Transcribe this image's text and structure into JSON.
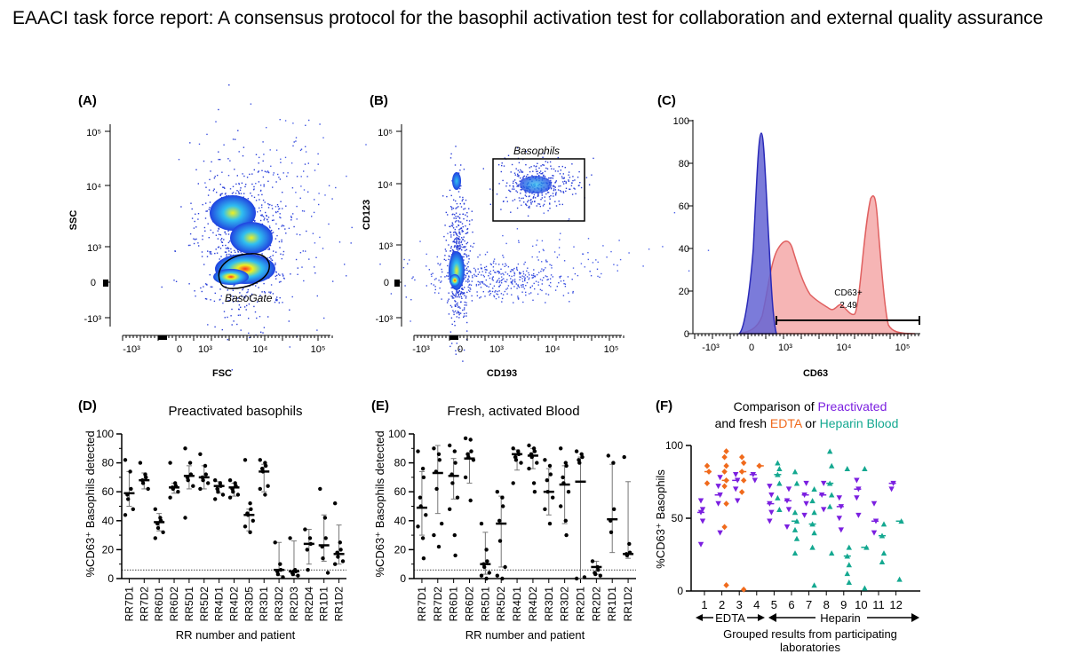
{
  "title": "EAACI task force report: A consensus protocol for the basophil activation test for collaboration and external quality assurance",
  "colors": {
    "dot": "#000000",
    "purple": "#7b1fe0",
    "orange": "#f06a1c",
    "teal": "#14a890",
    "histo_blue_fill": "#6464d4",
    "histo_blue_line": "#2a2ab8",
    "histo_red_fill": "#f4a8a8",
    "histo_red_line": "#e06060",
    "density_blue": "#2040e0",
    "density_cyan": "#30c0f0",
    "density_yellow": "#f0f020",
    "density_red": "#ff3020"
  },
  "panels": {
    "A": {
      "label": "(A)",
      "xlabel": "FSC",
      "ylabel": "SSC",
      "gate_label": "BasoGate",
      "x_ticks": [
        "-10³",
        "0",
        "10³",
        "10⁴",
        "10⁵"
      ],
      "y_ticks": [
        "10⁵",
        "10⁴",
        "10³",
        "0",
        "-10³"
      ]
    },
    "B": {
      "label": "(B)",
      "xlabel": "CD193",
      "ylabel": "CD123",
      "gate_label": "Basophils",
      "x_ticks": [
        "-10³",
        "0",
        "10³",
        "10⁴",
        "10⁵"
      ],
      "y_ticks": [
        "10⁵",
        "10⁴",
        "10³",
        "0",
        "-10³"
      ]
    },
    "C": {
      "label": "(C)",
      "xlabel": "CD63",
      "x_ticks": [
        "-10³",
        "0",
        "10³",
        "10⁴",
        "10⁵"
      ],
      "y_ticks": [
        "100",
        "80",
        "60",
        "40",
        "20",
        "0"
      ],
      "gate_label": "CD63+",
      "gate_value": "2.49"
    },
    "D": {
      "label": "(D)",
      "title": "Preactivated basophils",
      "ylabel": "%CD63⁺ Basophils detected",
      "xlabel": "RR number and patient"
    },
    "E": {
      "label": "(E)",
      "title": "Fresh, activated Blood",
      "ylabel": "%CD63⁺ Basophils detected",
      "xlabel": "RR number and patient"
    },
    "F": {
      "label": "(F)",
      "title_line1": "Comparison of ",
      "title_word_preactivated": "Preactivated",
      "title_line2a": "and fresh ",
      "title_word_edta": "EDTA",
      "title_or": " or ",
      "title_word_heparin": "Heparin Blood",
      "ylabel": "%CD63⁺ Basophils",
      "edta_label": "EDTA",
      "heparin_label": "Heparin",
      "xlabel_line1": "Grouped results from participating",
      "xlabel_line2": "laboratories"
    }
  },
  "chart_data": [
    {
      "panel": "D",
      "type": "scatter",
      "title": "Preactivated basophils",
      "ylabel": "%CD63+ Basophils detected",
      "xlabel": "RR number and patient",
      "ylim": [
        0,
        100
      ],
      "y_ticks": [
        0,
        20,
        40,
        60,
        80,
        100
      ],
      "reference_line": 6,
      "categories": [
        "RR7D1",
        "RR7D2",
        "RR6D1",
        "RR6D2",
        "RR5D1",
        "RR5D2",
        "RR4D1",
        "RR4D2",
        "RR3D5",
        "RR3D1",
        "RR3D2",
        "RR2D3",
        "RR2D4",
        "RR1D1",
        "RR1D2"
      ],
      "points": [
        [
          82,
          74,
          62,
          58,
          55,
          48,
          44
        ],
        [
          80,
          72,
          70,
          68,
          66,
          62
        ],
        [
          48,
          42,
          40,
          38,
          35,
          32,
          28
        ],
        [
          80,
          66,
          64,
          63,
          62,
          60,
          56
        ],
        [
          90,
          80,
          72,
          70,
          68,
          64,
          42
        ],
        [
          86,
          78,
          72,
          70,
          68,
          66,
          62
        ],
        [
          68,
          66,
          64,
          62,
          60,
          58,
          55
        ],
        [
          68,
          66,
          64,
          62,
          60,
          58,
          56
        ],
        [
          82,
          52,
          48,
          45,
          44,
          40,
          36,
          32
        ],
        [
          82,
          80,
          78,
          76,
          74,
          64,
          62,
          58
        ],
        [
          25,
          10,
          6,
          5,
          3,
          1
        ],
        [
          28,
          6,
          5,
          4,
          3,
          2
        ],
        [
          34,
          28,
          24,
          20,
          6
        ],
        [
          62,
          42,
          28,
          22,
          14,
          4
        ],
        [
          52,
          25,
          20,
          18,
          15,
          12,
          10
        ]
      ],
      "medians": [
        59,
        68,
        39,
        63,
        71,
        70,
        64,
        63,
        44,
        74,
        6,
        5,
        24,
        23,
        17
      ],
      "err_low": [
        50,
        62,
        33,
        59,
        62,
        62,
        59,
        57,
        33,
        60,
        2,
        2,
        10,
        12,
        10
      ],
      "err_high": [
        74,
        73,
        45,
        66,
        78,
        78,
        67,
        66,
        48,
        79,
        25,
        26,
        34,
        44,
        37
      ]
    },
    {
      "panel": "E",
      "type": "scatter",
      "title": "Fresh, activated Blood",
      "ylabel": "%CD63+ Basophils detected",
      "xlabel": "RR number and patient",
      "ylim": [
        0,
        100
      ],
      "y_ticks": [
        0,
        20,
        40,
        60,
        80,
        100
      ],
      "reference_line": 6,
      "categories": [
        "RR7D1",
        "RR7D2",
        "RR6D1",
        "RR6D2",
        "RR5D1",
        "RR5D2",
        "RR4D1",
        "RR4D2",
        "RR3D1",
        "RR3D2",
        "RR2D1",
        "RR2D2",
        "RR1D1",
        "RR1D2"
      ],
      "points": [
        [
          88,
          76,
          70,
          56,
          50,
          44,
          36,
          28,
          14
        ],
        [
          90,
          86,
          82,
          74,
          62,
          38,
          30,
          22
        ],
        [
          92,
          88,
          80,
          72,
          66,
          56,
          48,
          30,
          16
        ],
        [
          97,
          96,
          88,
          86,
          84,
          82,
          70,
          54
        ],
        [
          38,
          20,
          12,
          10,
          8,
          4,
          2,
          0
        ],
        [
          60,
          56,
          50,
          40,
          26,
          8,
          2,
          0
        ],
        [
          90,
          88,
          86,
          84,
          82,
          80,
          66
        ],
        [
          92,
          90,
          88,
          86,
          84,
          80,
          76,
          66,
          60
        ],
        [
          82,
          78,
          72,
          68,
          60,
          56,
          48,
          38
        ],
        [
          90,
          80,
          78,
          70,
          66,
          60,
          50,
          40,
          30
        ],
        [
          88,
          86,
          84,
          82,
          80,
          1,
          0
        ],
        [
          12,
          8,
          6,
          4,
          3,
          2
        ],
        [
          85,
          80,
          48,
          40,
          32
        ],
        [
          84,
          24,
          18,
          17,
          16
        ]
      ],
      "medians": [
        49,
        73,
        71,
        83,
        10,
        38,
        86,
        85,
        60,
        65,
        67,
        8,
        41,
        17
      ],
      "err_low": [
        30,
        45,
        55,
        66,
        3,
        8,
        75,
        76,
        44,
        38,
        0,
        3,
        18,
        14
      ],
      "err_high": [
        74,
        92,
        83,
        87,
        32,
        57,
        89,
        90,
        76,
        78,
        84,
        12,
        79,
        67
      ]
    },
    {
      "panel": "F",
      "type": "scatter",
      "ylabel": "%CD63+ Basophils",
      "xlabel": "Grouped results from participating laboratories",
      "ylim": [
        0,
        100
      ],
      "y_ticks": [
        0,
        50,
        100
      ],
      "categories": [
        "1",
        "2",
        "3",
        "4",
        "5",
        "6",
        "7",
        "8",
        "9",
        "10",
        "11",
        "12"
      ],
      "groups": {
        "EDTA": [
          "1",
          "2",
          "3",
          "4"
        ],
        "Heparin": [
          "5",
          "6",
          "7",
          "8",
          "9",
          "10",
          "11",
          "12"
        ]
      },
      "legend": {
        "Preactivated": "purple triangle-down",
        "EDTA": "orange diamond",
        "Heparin": "teal triangle-up"
      },
      "series": [
        {
          "name": "Preactivated",
          "points": [
            [
              1,
              62
            ],
            [
              1,
              56
            ],
            [
              1,
              54
            ],
            [
              1,
              48
            ],
            [
              1,
              32
            ],
            [
              2,
              78
            ],
            [
              2,
              72
            ],
            [
              2,
              66
            ],
            [
              2,
              60
            ],
            [
              2,
              40
            ],
            [
              3,
              80
            ],
            [
              3,
              76
            ],
            [
              3,
              70
            ],
            [
              3,
              62
            ],
            [
              4,
              80
            ],
            [
              4,
              76
            ],
            [
              5,
              72
            ],
            [
              5,
              66
            ],
            [
              5,
              60
            ],
            [
              5,
              54
            ],
            [
              5,
              48
            ],
            [
              6,
              70
            ],
            [
              6,
              62
            ],
            [
              6,
              56
            ],
            [
              6,
              44
            ],
            [
              7,
              74
            ],
            [
              7,
              66
            ],
            [
              7,
              60
            ],
            [
              7,
              52
            ],
            [
              8,
              74
            ],
            [
              8,
              66
            ],
            [
              8,
              56
            ],
            [
              9,
              64
            ],
            [
              9,
              58
            ],
            [
              9,
              50
            ],
            [
              9,
              42
            ],
            [
              10,
              76
            ],
            [
              10,
              70
            ],
            [
              10,
              64
            ],
            [
              10,
              52
            ],
            [
              11,
              60
            ],
            [
              11,
              48
            ],
            [
              11,
              40
            ],
            [
              12,
              74
            ],
            [
              12,
              70
            ]
          ]
        },
        {
          "name": "EDTA",
          "points": [
            [
              1,
              86
            ],
            [
              1,
              82
            ],
            [
              1,
              74
            ],
            [
              2,
              96
            ],
            [
              2,
              92
            ],
            [
              2,
              86
            ],
            [
              2,
              82
            ],
            [
              2,
              76
            ],
            [
              2,
              72
            ],
            [
              2,
              60
            ],
            [
              2,
              44
            ],
            [
              2,
              4
            ],
            [
              3,
              92
            ],
            [
              3,
              88
            ],
            [
              3,
              82
            ],
            [
              3,
              76
            ],
            [
              3,
              68
            ],
            [
              3,
              1
            ],
            [
              4,
              86
            ]
          ]
        },
        {
          "name": "Heparin",
          "points": [
            [
              5,
              88
            ],
            [
              5,
              84
            ],
            [
              5,
              80
            ],
            [
              5,
              74
            ],
            [
              5,
              64
            ],
            [
              5,
              56
            ],
            [
              6,
              82
            ],
            [
              6,
              74
            ],
            [
              6,
              54
            ],
            [
              6,
              48
            ],
            [
              6,
              42
            ],
            [
              6,
              36
            ],
            [
              6,
              26
            ],
            [
              7,
              70
            ],
            [
              7,
              62
            ],
            [
              7,
              54
            ],
            [
              7,
              46
            ],
            [
              7,
              40
            ],
            [
              7,
              30
            ],
            [
              7,
              4
            ],
            [
              8,
              96
            ],
            [
              8,
              86
            ],
            [
              8,
              74
            ],
            [
              8,
              66
            ],
            [
              8,
              58
            ],
            [
              8,
              26
            ],
            [
              9,
              84
            ],
            [
              9,
              30
            ],
            [
              9,
              24
            ],
            [
              9,
              18
            ],
            [
              9,
              12
            ],
            [
              9,
              6
            ],
            [
              10,
              84
            ],
            [
              10,
              30
            ],
            [
              10,
              2
            ],
            [
              11,
              46
            ],
            [
              11,
              38
            ],
            [
              11,
              26
            ],
            [
              11,
              20
            ],
            [
              12,
              48
            ],
            [
              12,
              8
            ]
          ]
        }
      ]
    }
  ]
}
